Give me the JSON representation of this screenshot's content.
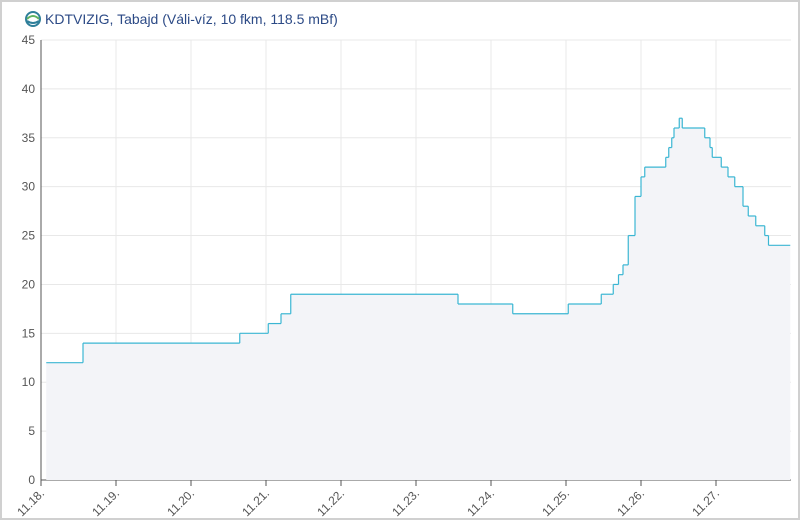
{
  "chart_data": {
    "type": "step",
    "title": "KDTVIZIG, Tabajd (Váli-víz, 10 fkm, 118.5 mBf)",
    "series": [
      {
        "color": "#3bb6d3",
        "x": [
          18.07,
          18.56,
          20.65,
          21.03,
          21.2,
          21.33,
          23.56,
          24.29,
          25.03,
          25.47,
          25.63,
          25.7,
          25.76,
          25.83,
          25.92,
          26.0,
          26.05,
          26.33,
          26.37,
          26.41,
          26.44,
          26.51,
          26.55,
          26.85,
          26.92,
          26.95,
          27.07,
          27.16,
          27.25,
          27.36,
          27.43,
          27.53,
          27.65,
          27.7,
          27.99
        ],
        "values": [
          12,
          14,
          15,
          16,
          17,
          19,
          18,
          17,
          18,
          19,
          20,
          21,
          22,
          25,
          29,
          31,
          32,
          33,
          34,
          35,
          36,
          37,
          36,
          35,
          34,
          33,
          32,
          31,
          30,
          28,
          27,
          26,
          25,
          24,
          24
        ]
      }
    ],
    "xlim": [
      18,
      28
    ],
    "xticks": [
      {
        "value": 18,
        "label": "11.18."
      },
      {
        "value": 19,
        "label": "11.19."
      },
      {
        "value": 20,
        "label": "11.20."
      },
      {
        "value": 21,
        "label": "11.21."
      },
      {
        "value": 22,
        "label": "11.22."
      },
      {
        "value": 23,
        "label": "11.23."
      },
      {
        "value": 24,
        "label": "11.24."
      },
      {
        "value": 25,
        "label": "11.25."
      },
      {
        "value": 26,
        "label": "11.26."
      },
      {
        "value": 27,
        "label": "11.27."
      }
    ],
    "ylim": [
      0,
      45
    ],
    "yticks": [
      0,
      5,
      10,
      15,
      20,
      25,
      30,
      35,
      40,
      45
    ],
    "grid": true
  }
}
